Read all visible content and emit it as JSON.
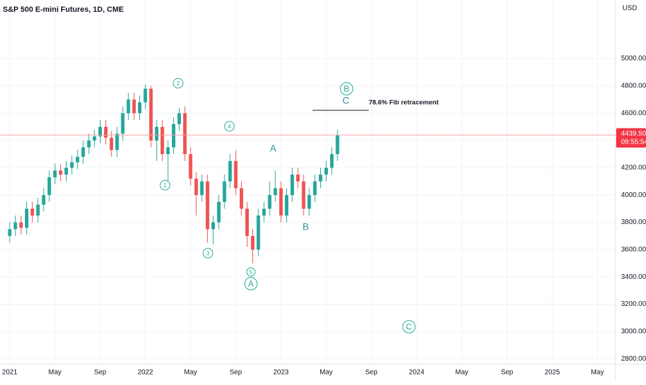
{
  "chart_data": {
    "type": "candlestick",
    "title": "S&P 500 E-mini Futures, 1D, CME",
    "currency": "USD",
    "up_color": "#26a69a",
    "down_color": "#ef5350",
    "x": [
      0,
      0.5,
      1,
      1.5,
      2,
      2.5,
      3,
      3.5,
      4,
      4.5,
      5,
      5.5,
      6,
      6.5,
      7,
      7.5,
      8,
      8.5,
      9,
      9.5,
      10,
      10.5,
      11,
      11.5,
      12,
      12.5,
      13,
      13.5,
      14,
      14.5,
      15,
      15.5,
      16,
      16.5,
      17,
      17.5,
      18,
      18.5,
      19,
      19.5,
      20,
      20.5,
      21,
      21.5,
      22,
      22.5,
      23,
      23.5,
      24,
      24.5,
      25,
      25.5,
      26,
      26.5,
      27,
      27.5,
      28,
      28.5,
      29
    ],
    "open": [
      3700,
      3750,
      3800,
      3760,
      3900,
      3850,
      3930,
      4000,
      4130,
      4180,
      4150,
      4200,
      4240,
      4280,
      4350,
      4400,
      4430,
      4500,
      4420,
      4330,
      4450,
      4600,
      4700,
      4600,
      4680,
      4780,
      4400,
      4500,
      4300,
      4350,
      4520,
      4600,
      4300,
      4120,
      4000,
      4100,
      3750,
      3800,
      3950,
      4100,
      4250,
      4050,
      3900,
      3700,
      3600,
      3850,
      3900,
      4000,
      4050,
      3850,
      4000,
      4150,
      4100,
      3900,
      4000,
      4100,
      4150,
      4200,
      4300
    ],
    "high": [
      3800,
      3850,
      3850,
      3950,
      3950,
      3980,
      4050,
      4180,
      4230,
      4230,
      4250,
      4290,
      4330,
      4400,
      4450,
      4480,
      4550,
      4550,
      4470,
      4500,
      4650,
      4750,
      4750,
      4730,
      4810,
      4800,
      4550,
      4550,
      4400,
      4570,
      4640,
      4650,
      4350,
      4170,
      4150,
      4150,
      3850,
      4000,
      4150,
      4300,
      4330,
      4100,
      3950,
      3750,
      3900,
      3950,
      4100,
      4180,
      4100,
      4050,
      4200,
      4200,
      4150,
      4050,
      4150,
      4200,
      4250,
      4350,
      4480
    ],
    "low": [
      3650,
      3700,
      3710,
      3710,
      3800,
      3800,
      3880,
      3950,
      4080,
      4100,
      4100,
      4150,
      4190,
      4230,
      4300,
      4350,
      4380,
      4370,
      4280,
      4280,
      4400,
      4550,
      4550,
      4550,
      4630,
      4350,
      4250,
      4250,
      4100,
      4300,
      4470,
      4250,
      4070,
      3850,
      3950,
      3650,
      3640,
      3750,
      3900,
      4050,
      4000,
      3850,
      3620,
      3500,
      3550,
      3800,
      3850,
      3950,
      3800,
      3800,
      3950,
      4050,
      3850,
      3850,
      3950,
      4050,
      4100,
      4150,
      4250
    ],
    "close": [
      3750,
      3800,
      3760,
      3900,
      3850,
      3930,
      4000,
      4130,
      4180,
      4150,
      4200,
      4240,
      4280,
      4350,
      4400,
      4430,
      4500,
      4420,
      4330,
      4450,
      4600,
      4700,
      4600,
      4680,
      4780,
      4400,
      4500,
      4300,
      4350,
      4520,
      4600,
      4300,
      4120,
      4000,
      4100,
      3750,
      3800,
      3950,
      4100,
      4250,
      4050,
      3900,
      3700,
      3600,
      3850,
      3900,
      4000,
      4050,
      3850,
      4000,
      4150,
      4100,
      3900,
      4000,
      4100,
      4150,
      4200,
      4300,
      4440
    ],
    "xlim": [
      -0.86,
      53.6
    ],
    "xticks": [
      {
        "value": 0,
        "label": "2021"
      },
      {
        "value": 4,
        "label": "May"
      },
      {
        "value": 8,
        "label": "Sep"
      },
      {
        "value": 12,
        "label": "2022"
      },
      {
        "value": 16,
        "label": "May"
      },
      {
        "value": 20,
        "label": "Sep"
      },
      {
        "value": 24,
        "label": "2023"
      },
      {
        "value": 28,
        "label": "May"
      },
      {
        "value": 32,
        "label": "Sep"
      },
      {
        "value": 36,
        "label": "2024"
      },
      {
        "value": 40,
        "label": "May"
      },
      {
        "value": 44,
        "label": "Sep"
      },
      {
        "value": 48,
        "label": "2025"
      },
      {
        "value": 52,
        "label": "May"
      }
    ],
    "ylim": [
      2760,
      5430
    ],
    "yticks": [
      {
        "value": 2800,
        "label": "2800.00"
      },
      {
        "value": 3000,
        "label": "3000.00"
      },
      {
        "value": 3200,
        "label": "3200.00"
      },
      {
        "value": 3400,
        "label": "3400.00"
      },
      {
        "value": 3600,
        "label": "3600.00"
      },
      {
        "value": 3800,
        "label": "3800.00"
      },
      {
        "value": 4000,
        "label": "4000.00"
      },
      {
        "value": 4200,
        "label": "4200.00"
      },
      {
        "value": 4400,
        "label": "4400.00"
      },
      {
        "value": 4600,
        "label": "4600.00"
      },
      {
        "value": 4800,
        "label": "4800.00"
      },
      {
        "value": 5000,
        "label": "5000.00"
      }
    ],
    "grid": true,
    "last_price": {
      "value": 4439.5,
      "label": "4439.50"
    },
    "countdown": "09:55:54",
    "annotations": [
      "1",
      "2",
      "3",
      "4",
      "5",
      "A",
      "B",
      "C",
      "A",
      "B",
      "C"
    ],
    "fib_label": "78.6% Fib retracement"
  }
}
